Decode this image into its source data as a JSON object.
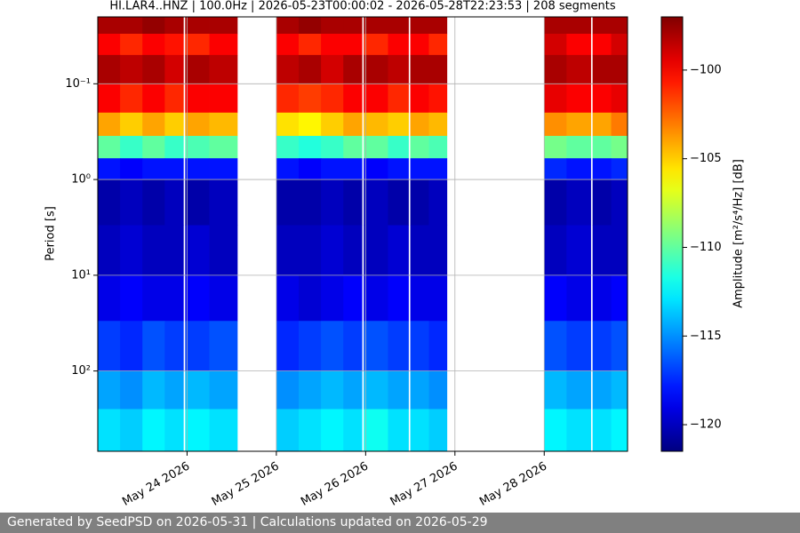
{
  "chart_data": {
    "type": "heatmap",
    "title": "HI.LAR4..HNZ | 100.0Hz | 2026-05-23T00:00:02 - 2026-05-28T22:23:53 | 208 segments",
    "ylabel": "Period [s]",
    "colorbar_label": "Amplitude [m²/s⁴/Hz] [dB]",
    "colormap": "jet",
    "clim": [
      -121.5,
      -97
    ],
    "colorbar_ticks": [
      {
        "value": -120,
        "label": "−120"
      },
      {
        "value": -115,
        "label": "−115"
      },
      {
        "value": -110,
        "label": "−110"
      },
      {
        "value": -105,
        "label": "−105"
      },
      {
        "value": -100,
        "label": "−100"
      }
    ],
    "xlim": [
      "2026-05-23T00:00",
      "2026-05-28T22:24"
    ],
    "xticks": [
      {
        "value": "2026-05-24T00:00",
        "label": "May 24 2026"
      },
      {
        "value": "2026-05-25T00:00",
        "label": "May 25 2026"
      },
      {
        "value": "2026-05-26T00:00",
        "label": "May 26 2026"
      },
      {
        "value": "2026-05-27T00:00",
        "label": "May 27 2026"
      },
      {
        "value": "2026-05-28T00:00",
        "label": "May 28 2026"
      }
    ],
    "ylim": [
      0.02,
      690
    ],
    "yscale": "log",
    "y_inverted": true,
    "yticks": [
      {
        "value": 0.1,
        "label": "10⁻¹"
      },
      {
        "value": 1,
        "label": "10⁰"
      },
      {
        "value": 10,
        "label": "10¹"
      },
      {
        "value": 100,
        "label": "10²"
      }
    ],
    "grid": true,
    "x_edges": [
      "2026-05-23T00:00",
      "2026-05-23T06:00",
      "2026-05-23T12:00",
      "2026-05-23T18:00",
      "2026-05-23T23:00",
      "2026-05-23T23:30",
      "2026-05-24T06:00",
      "2026-05-24T13:30",
      "2026-05-25T00:00",
      "2026-05-25T06:00",
      "2026-05-25T12:00",
      "2026-05-25T18:00",
      "2026-05-25T23:00",
      "2026-05-25T23:30",
      "2026-05-26T06:00",
      "2026-05-26T11:30",
      "2026-05-26T12:00",
      "2026-05-26T17:00",
      "2026-05-26T21:50",
      "2026-05-28T00:00",
      "2026-05-28T06:00",
      "2026-05-28T12:30",
      "2026-05-28T13:00",
      "2026-05-28T18:00",
      "2026-05-28T22:24"
    ],
    "y_edges": [
      0.02,
      0.03,
      0.05,
      0.1,
      0.2,
      0.35,
      0.6,
      1,
      3,
      10,
      30,
      100,
      250,
      690
    ],
    "z": [
      [
        -98,
        -98,
        -97.5,
        -98,
        null,
        -98,
        -98,
        null,
        -98,
        -97.5,
        -98,
        -98,
        null,
        -98,
        -98,
        null,
        -98,
        -98,
        null,
        -98,
        -98,
        null,
        -98,
        -98
      ],
      [
        -100,
        -101,
        -100,
        -100.5,
        null,
        -101,
        -100,
        null,
        -100,
        -101,
        -100,
        -100,
        null,
        -101,
        -100,
        null,
        -100,
        -101,
        null,
        -99,
        -100,
        null,
        -100,
        -99
      ],
      [
        -98,
        -98.5,
        -98,
        -99,
        null,
        -98,
        -98.5,
        null,
        -98.5,
        -98,
        -99,
        -98,
        null,
        -98,
        -98.5,
        null,
        -98,
        -98,
        null,
        -98,
        -98.5,
        null,
        -98,
        -98
      ],
      [
        -100,
        -101,
        -100,
        -101,
        null,
        -100,
        -100,
        null,
        -101,
        -101.5,
        -101,
        -100,
        null,
        -100,
        -101,
        null,
        -100,
        -100.5,
        null,
        -99.5,
        -100,
        null,
        -100,
        -99.5
      ],
      [
        -104,
        -105,
        -104,
        -105,
        null,
        -104,
        -104.5,
        null,
        -105.5,
        -106,
        -105,
        -104,
        null,
        -104.5,
        -105,
        null,
        -104,
        -104.5,
        null,
        -103.5,
        -104,
        null,
        -104,
        -103
      ],
      [
        -110,
        -111,
        -110,
        -111,
        null,
        -110.5,
        -110,
        null,
        -111,
        -111.5,
        -111,
        -110,
        null,
        -110,
        -111,
        null,
        -110,
        -110.5,
        null,
        -109.5,
        -110,
        null,
        -110,
        -109.5
      ],
      [
        -118,
        -118.5,
        -118,
        -118,
        null,
        -118,
        -118,
        null,
        -118,
        -118.5,
        -118,
        -118,
        null,
        -118.5,
        -118,
        null,
        -118,
        -118,
        null,
        -117.5,
        -118,
        null,
        -118,
        -117.5
      ],
      [
        -120.5,
        -120,
        -120.5,
        -120,
        null,
        -120.5,
        -120,
        null,
        -120.5,
        -120.5,
        -120,
        -120.5,
        null,
        -120,
        -120.5,
        null,
        -120.5,
        -120,
        null,
        -120.5,
        -120,
        null,
        -120.5,
        -120
      ],
      [
        -120,
        -119.5,
        -120,
        -120,
        null,
        -119.5,
        -120,
        null,
        -120,
        -120,
        -119.5,
        -120,
        null,
        -120,
        -119.5,
        null,
        -120,
        -120,
        null,
        -120,
        -119.5,
        null,
        -120,
        -120
      ],
      [
        -119,
        -118.5,
        -119,
        -119,
        null,
        -118.5,
        -119,
        null,
        -119,
        -119.5,
        -119,
        -118.5,
        null,
        -119,
        -118.5,
        null,
        -119,
        -119,
        null,
        -118.5,
        -119,
        null,
        -119,
        -118.5
      ],
      [
        -117,
        -117.5,
        -116.5,
        -117,
        null,
        -117,
        -116.5,
        null,
        -117.5,
        -117,
        -116.5,
        -117,
        null,
        -116.5,
        -117,
        null,
        -117,
        -117.5,
        null,
        -116.5,
        -117,
        null,
        -117,
        -116.5
      ],
      [
        -114.5,
        -115,
        -114,
        -114.5,
        null,
        -114,
        -114.5,
        null,
        -115,
        -114.5,
        -114,
        -114.5,
        null,
        -114,
        -114.5,
        null,
        -114.5,
        -115,
        null,
        -114,
        -114.5,
        null,
        -114.5,
        -114
      ],
      [
        -113,
        -113.5,
        -112.5,
        -113,
        null,
        -112.5,
        -113,
        null,
        -113.5,
        -113,
        -112.5,
        -113,
        null,
        -112,
        -113,
        null,
        -113,
        -113.5,
        null,
        -112.5,
        -113,
        null,
        -113,
        -112.5
      ]
    ]
  },
  "footer": {
    "text": "Generated by SeedPSD on 2026-05-31 | Calculations updated on 2026-05-29"
  }
}
